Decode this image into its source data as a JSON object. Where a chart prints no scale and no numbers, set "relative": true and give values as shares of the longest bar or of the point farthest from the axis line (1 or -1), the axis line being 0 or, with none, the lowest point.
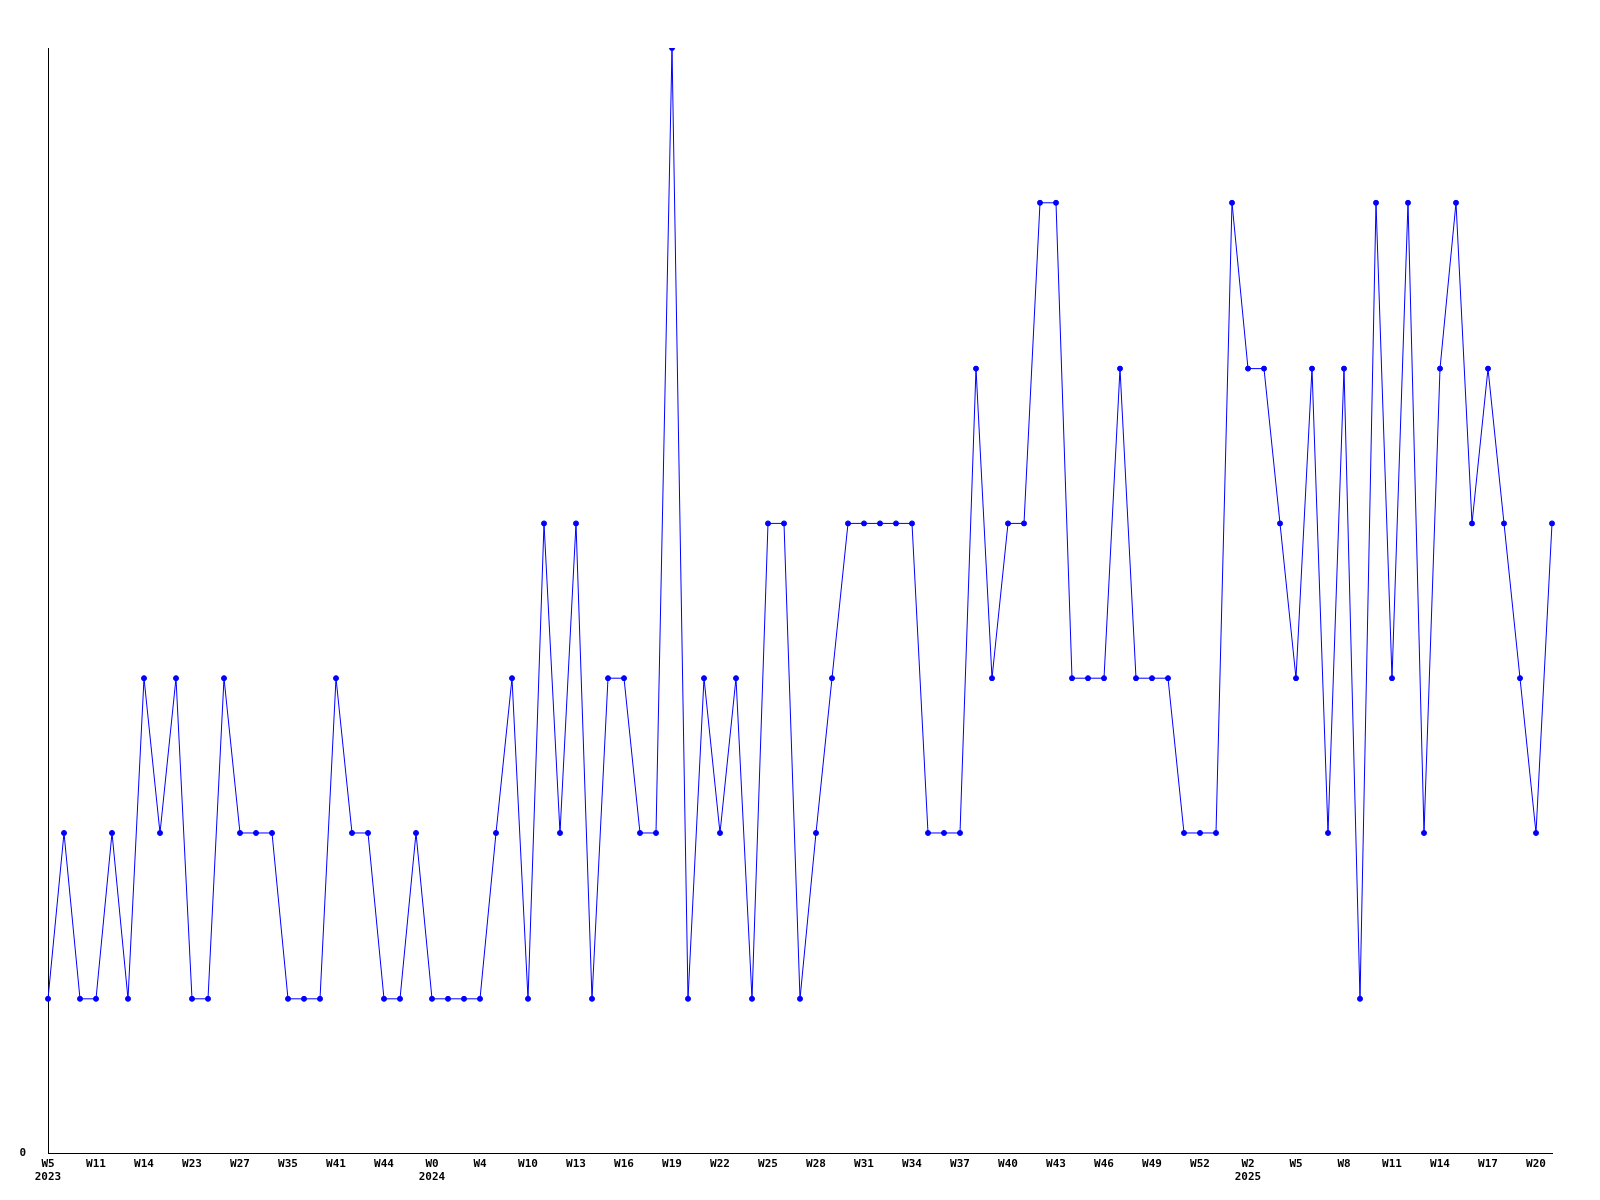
{
  "chart_data": {
    "type": "line",
    "relative": true,
    "grid": false,
    "legend": false,
    "marker": "circle",
    "line_style": "solid",
    "annotations": [
      "0"
    ],
    "categories": [
      "W5\n2023",
      null,
      null,
      "W11",
      null,
      null,
      "W14",
      null,
      null,
      "W23",
      null,
      null,
      "W27",
      null,
      null,
      "W35",
      null,
      null,
      "W41",
      null,
      null,
      "W44",
      null,
      null,
      "W0\n2024",
      null,
      null,
      "W4",
      null,
      null,
      "W10",
      null,
      null,
      "W13",
      null,
      null,
      "W16",
      null,
      null,
      "W19",
      null,
      null,
      "W22",
      null,
      null,
      "W25",
      null,
      null,
      "W28",
      null,
      null,
      "W31",
      null,
      null,
      "W34",
      null,
      null,
      "W37",
      null,
      null,
      "W40",
      null,
      null,
      "W43",
      null,
      null,
      "W46",
      null,
      null,
      "W49",
      null,
      null,
      "W52",
      null,
      null,
      "W2\n2025",
      null,
      null,
      "W5",
      null,
      null,
      "W8",
      null,
      null,
      "W11",
      null,
      null,
      "W14",
      null,
      null,
      "W17",
      null,
      null,
      "W20",
      null
    ],
    "series": [
      {
        "color": "#0000ff",
        "values": [
          0.14,
          0.29,
          0.14,
          0.14,
          0.29,
          0.14,
          0.43,
          0.29,
          0.43,
          0.14,
          0.14,
          0.43,
          0.29,
          0.29,
          0.29,
          0.14,
          0.14,
          0.14,
          0.43,
          0.29,
          0.29,
          0.14,
          0.14,
          0.29,
          0.14,
          0.14,
          0.14,
          0.14,
          0.29,
          0.43,
          0.14,
          0.57,
          0.29,
          0.57,
          0.14,
          0.43,
          0.43,
          0.29,
          0.29,
          1,
          0.14,
          0.43,
          0.29,
          0.43,
          0.14,
          0.57,
          0.57,
          0.14,
          0.29,
          0.43,
          0.57,
          0.57,
          0.57,
          0.57,
          0.57,
          0.29,
          0.29,
          0.29,
          0.71,
          0.43,
          0.57,
          0.57,
          0.86,
          0.86,
          0.43,
          0.43,
          0.43,
          0.71,
          0.43,
          0.43,
          0.43,
          0.29,
          0.29,
          0.29,
          0.86,
          0.71,
          0.71,
          0.57,
          0.43,
          0.71,
          0.29,
          0.71,
          0.14,
          0.86,
          0.43,
          0.86,
          0.29,
          0.71,
          0.86,
          0.57,
          0.71,
          0.57,
          0.43,
          0.29,
          0.57
        ]
      }
    ]
  }
}
